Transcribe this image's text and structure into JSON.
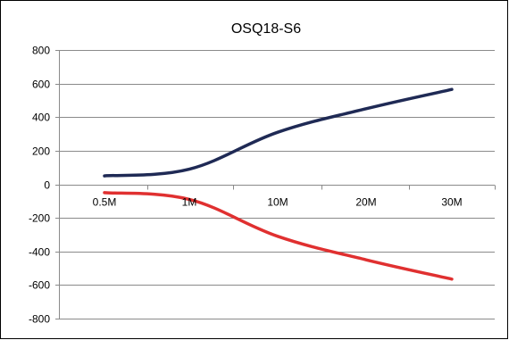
{
  "chart_data": {
    "type": "line",
    "title": "OSQ18-S6",
    "xlabel": "",
    "ylabel": "",
    "categories": [
      "0.5M",
      "1M",
      "10M",
      "20M",
      "30M"
    ],
    "ylim": [
      -800,
      800
    ],
    "yticks": [
      800,
      600,
      400,
      200,
      0,
      -200,
      -400,
      -600,
      -800
    ],
    "grid": true,
    "legend": "none",
    "series": [
      {
        "color": "#1f2a55",
        "values": [
          50,
          90,
          310,
          450,
          565
        ]
      },
      {
        "color": "#e03030",
        "values": [
          -50,
          -90,
          -310,
          -450,
          -565
        ]
      }
    ]
  }
}
